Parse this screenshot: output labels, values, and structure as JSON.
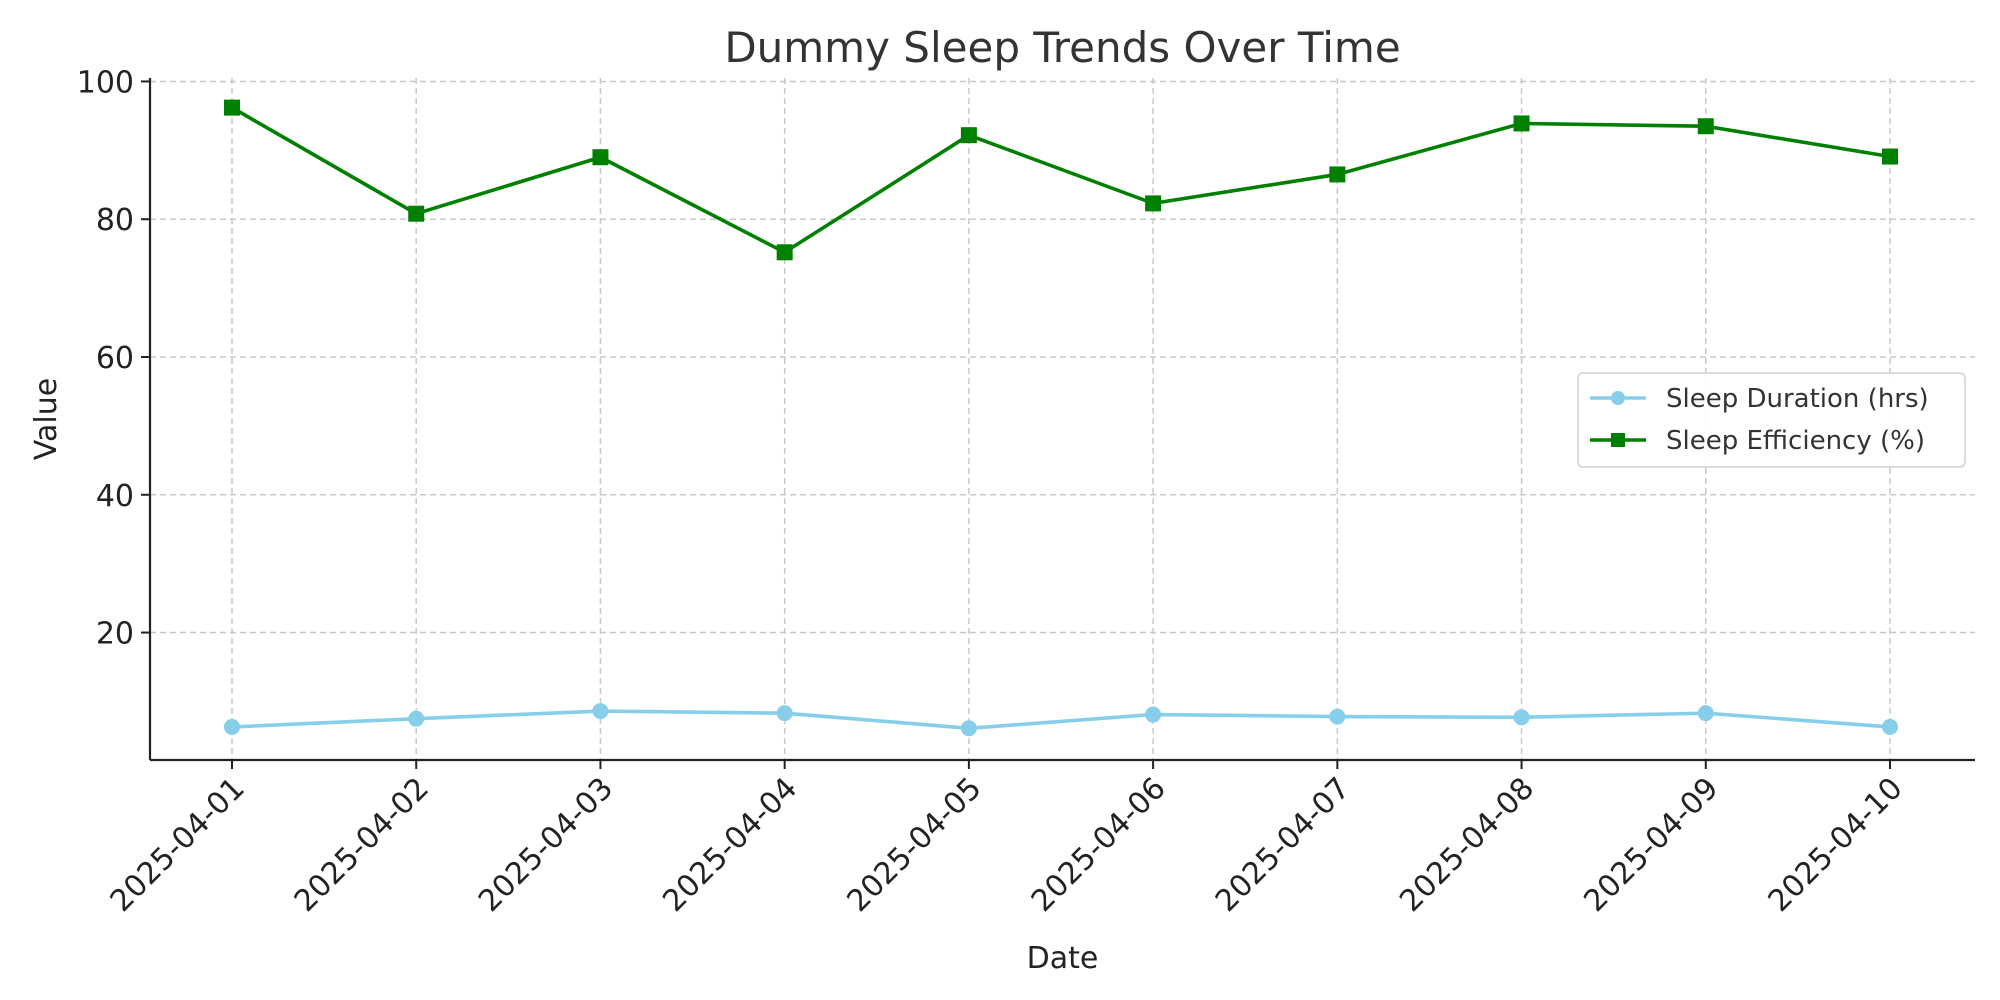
{
  "chart_data": {
    "type": "line",
    "title": "Dummy Sleep Trends Over Time",
    "xlabel": "Date",
    "ylabel": "Value",
    "categories": [
      "2025-04-01",
      "2025-04-02",
      "2025-04-03",
      "2025-04-04",
      "2025-04-05",
      "2025-04-06",
      "2025-04-07",
      "2025-04-08",
      "2025-04-09",
      "2025-04-10"
    ],
    "yticks": [
      20,
      40,
      60,
      80,
      100
    ],
    "ylim": [
      1.5,
      100.5
    ],
    "grid": true,
    "legend_position": "center-right",
    "series": [
      {
        "name": "Sleep Duration (hrs)",
        "color": "#87ceeb",
        "marker": "circle",
        "values": [
          6.3,
          7.5,
          8.6,
          8.3,
          6.1,
          8.1,
          7.8,
          7.7,
          8.3,
          6.3
        ]
      },
      {
        "name": "Sleep Efficiency (%)",
        "color": "#008000",
        "marker": "square",
        "values": [
          96.2,
          80.8,
          89.0,
          75.2,
          92.2,
          82.3,
          86.5,
          93.9,
          93.5,
          89.1
        ]
      }
    ]
  }
}
